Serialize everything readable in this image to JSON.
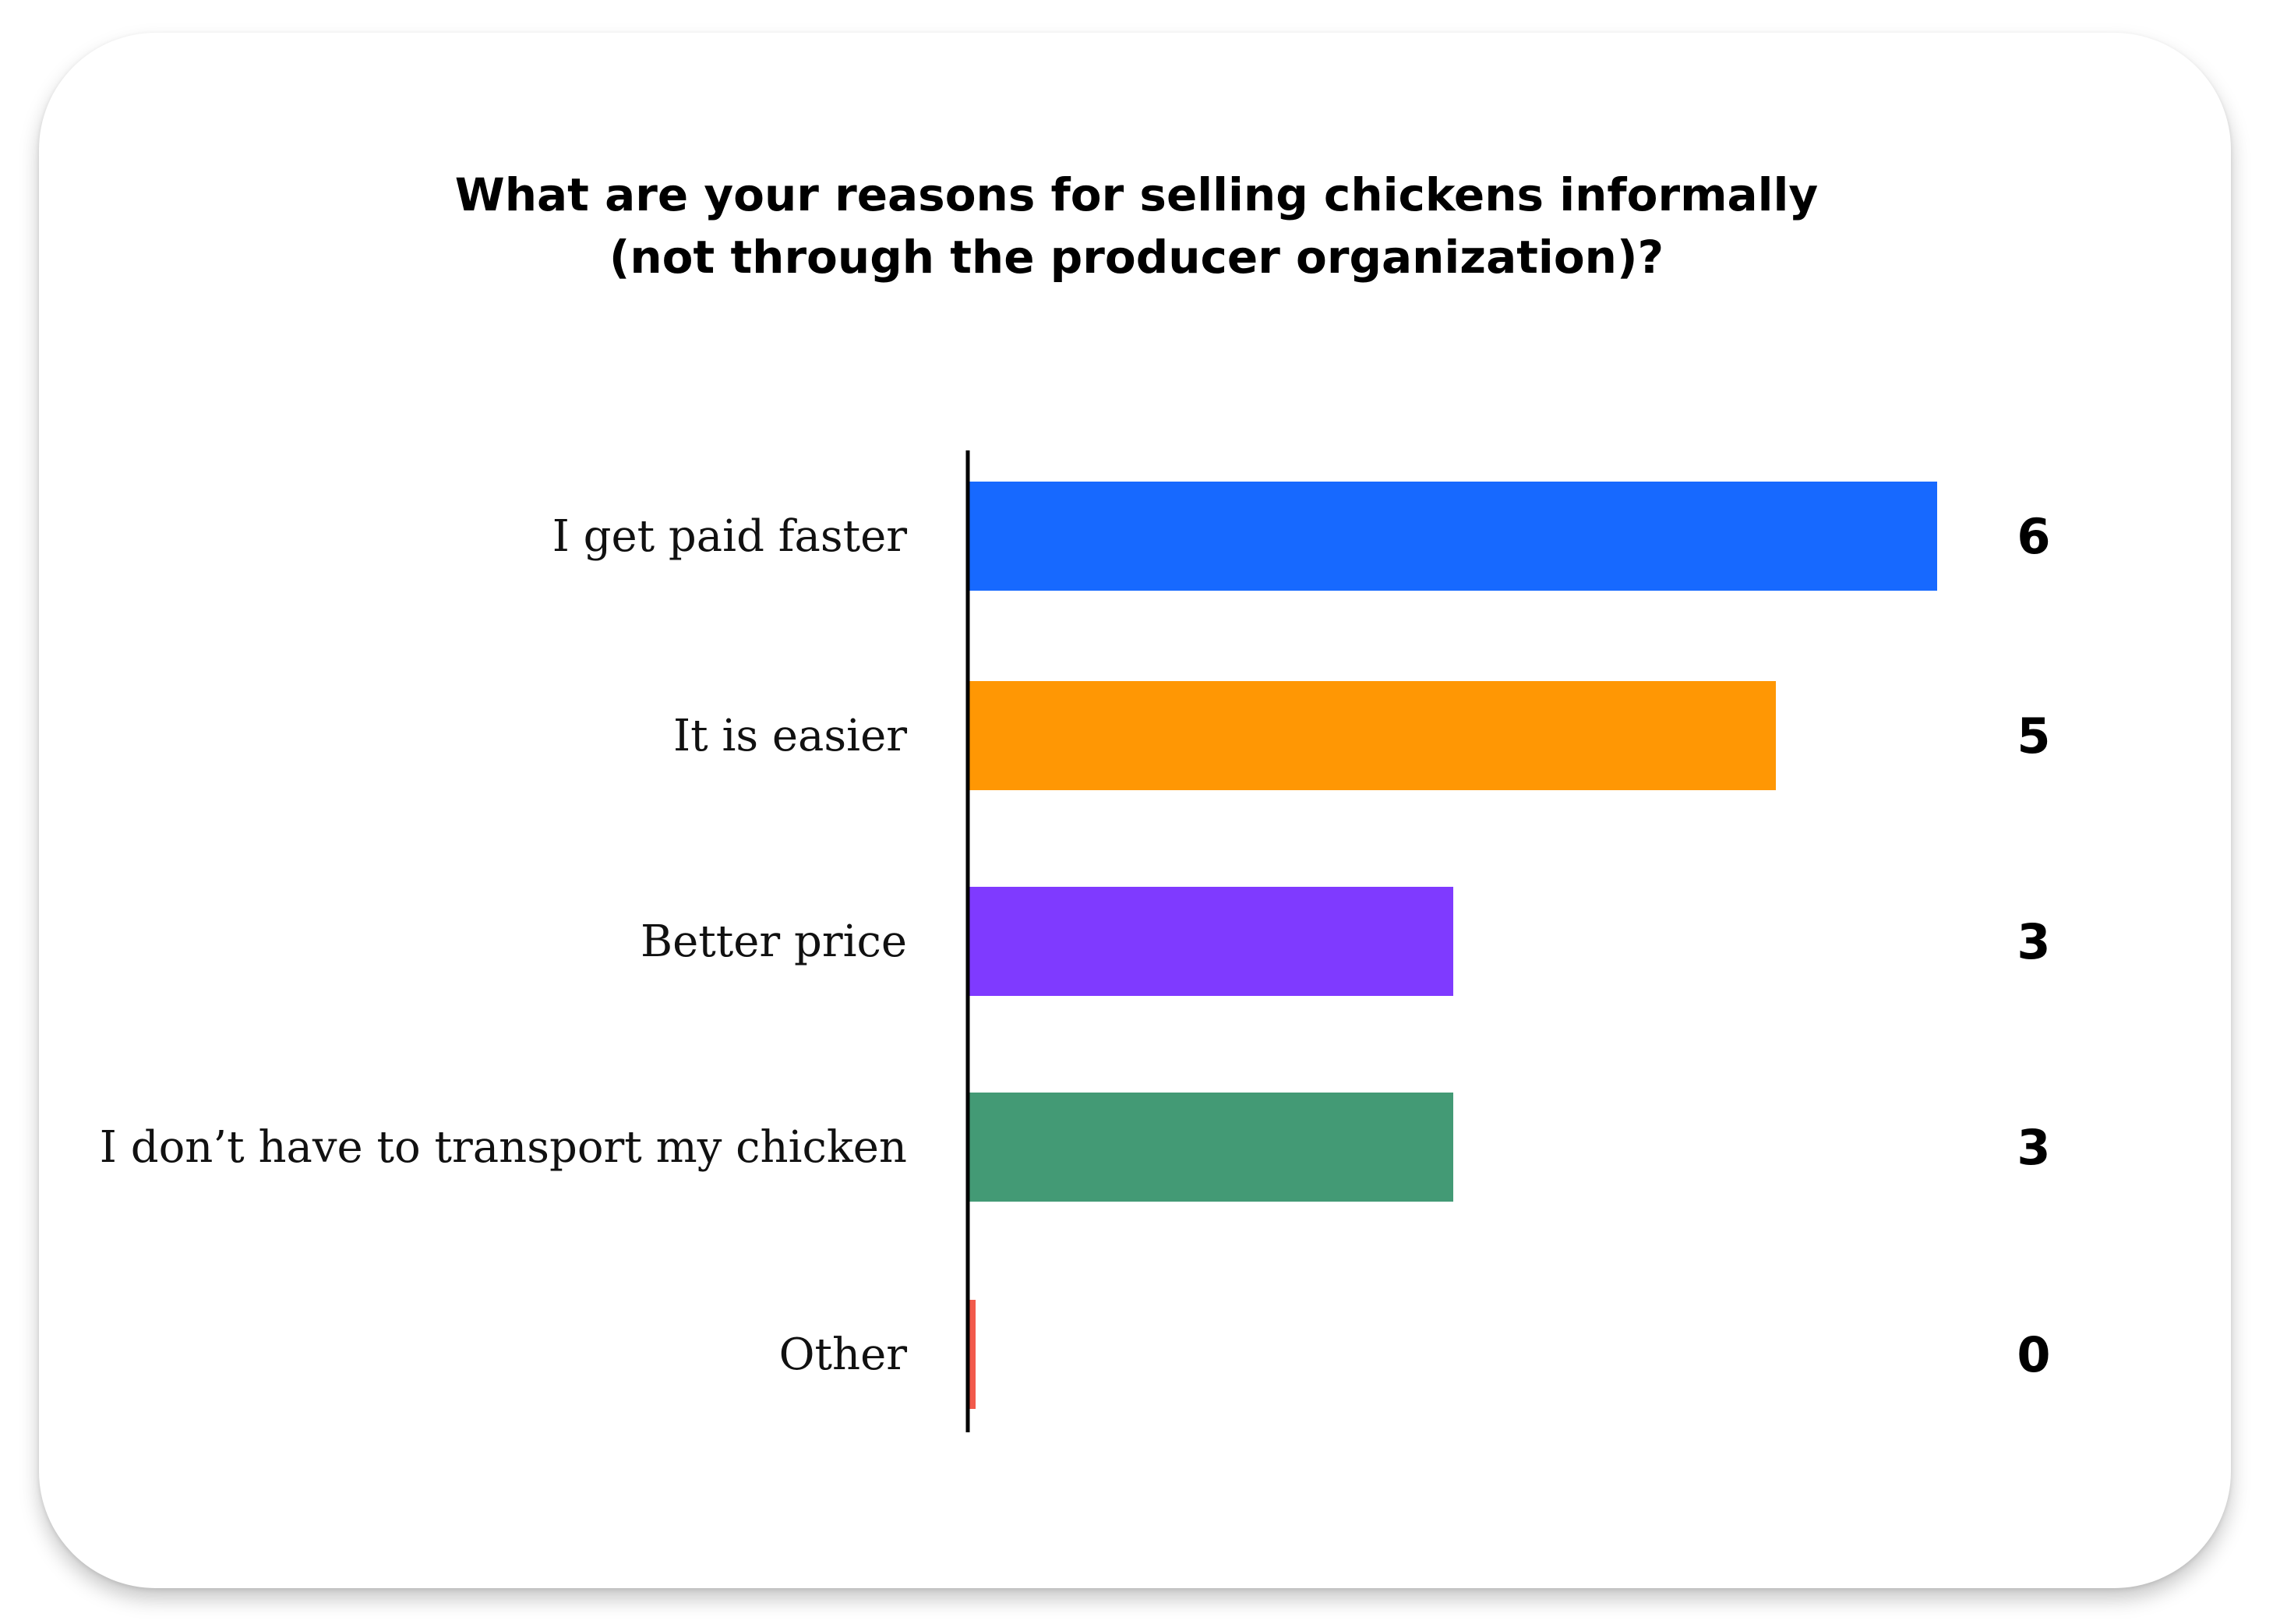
{
  "chart_data": {
    "type": "bar",
    "orientation": "horizontal",
    "title": [
      "What are your reasons for selling chickens informally",
      "(not through the producer organization)?"
    ],
    "categories": [
      "I get paid faster",
      "It is easier",
      "Better price",
      "I don’t have to transport my chicken",
      "Other"
    ],
    "values": [
      6,
      5,
      3,
      3,
      0
    ],
    "colors": [
      "#1769ff",
      "#ff9704",
      "#7f3aff",
      "#439a75",
      "#f25a4b"
    ],
    "xlim": [
      0,
      6
    ],
    "grid": false,
    "legend": "none"
  }
}
